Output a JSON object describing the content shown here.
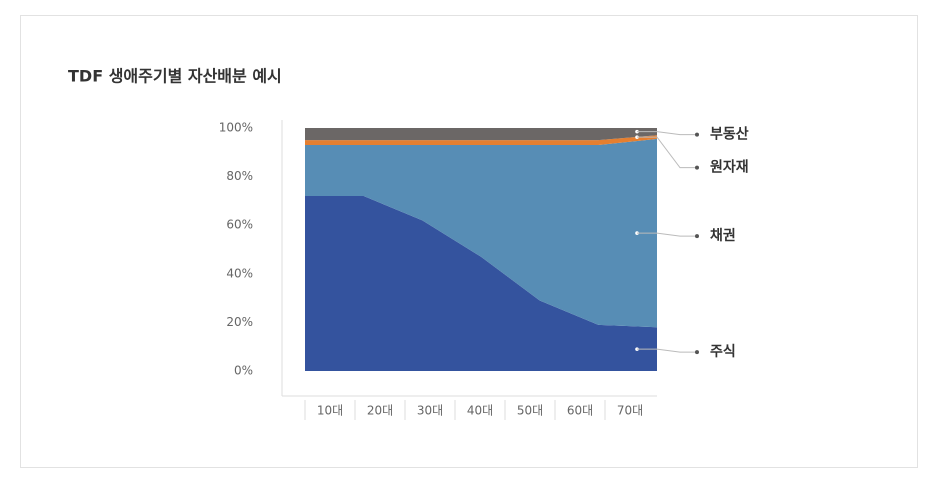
{
  "chart_data": {
    "type": "stacked-area",
    "title": "TDF 생애주기별 자산배분 예시",
    "categories": [
      "10대",
      "20대",
      "30대",
      "40대",
      "50대",
      "60대",
      "70대"
    ],
    "series": [
      {
        "name": "주식",
        "color": "#34539e",
        "values": [
          72,
          72,
          62,
          47,
          29,
          19,
          18
        ]
      },
      {
        "name": "채권",
        "color": "#578db5",
        "values": [
          21,
          21,
          31,
          46,
          64,
          74,
          77.5
        ]
      },
      {
        "name": "원자재",
        "color": "#e57f30",
        "values": [
          2,
          2,
          2,
          2,
          2,
          2,
          1.5
        ]
      },
      {
        "name": "부동산",
        "color": "#6b6766",
        "values": [
          5,
          5,
          5,
          5,
          5,
          5,
          3
        ]
      }
    ],
    "ylim": [
      0,
      100
    ],
    "yticks": [
      {
        "value": 0,
        "label": "0%"
      },
      {
        "value": 20,
        "label": "20%"
      },
      {
        "value": 40,
        "label": "40%"
      },
      {
        "value": 60,
        "label": "60%"
      },
      {
        "value": 80,
        "label": "80%"
      },
      {
        "value": 100,
        "label": "100%"
      }
    ],
    "grid": false
  }
}
